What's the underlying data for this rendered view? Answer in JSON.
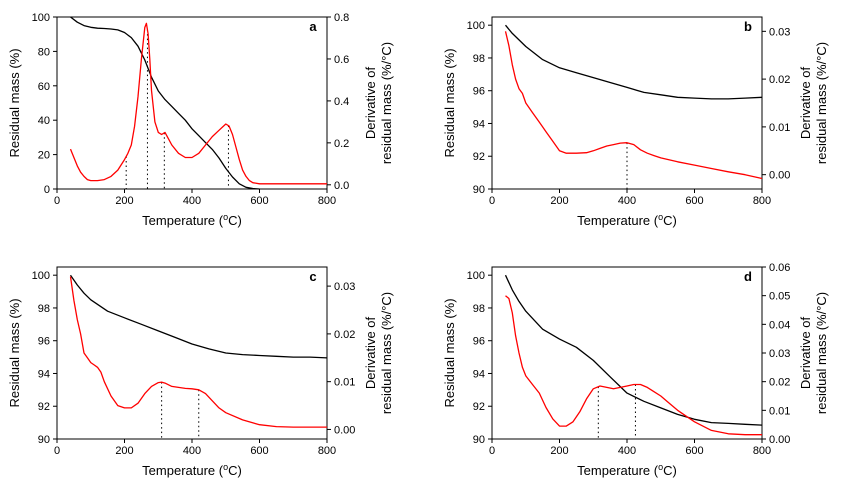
{
  "colors": {
    "mass": "#000000",
    "derivative": "#ff0000",
    "marker": "#000000"
  },
  "chart_data": [
    {
      "type": "line",
      "panel": "a",
      "xlabel": "Temperature (°C)",
      "ylabel": "Residual mass (%)",
      "y2label": [
        "Derivative of",
        "residual mass (%/°C)"
      ],
      "xlim": [
        0,
        800
      ],
      "xticks": [
        0,
        200,
        400,
        600,
        800
      ],
      "ylim": [
        0,
        100
      ],
      "yticks": [
        0,
        20,
        40,
        60,
        80,
        100
      ],
      "y2lim": [
        -0.02,
        0.8
      ],
      "y2ticks": [
        0.0,
        0.2,
        0.4,
        0.6,
        0.8
      ],
      "y2decimals": 1,
      "series": [
        {
          "name": "Residual mass",
          "axis": "left",
          "color": "#000000",
          "x": [
            40,
            60,
            80,
            100,
            120,
            140,
            160,
            180,
            200,
            220,
            240,
            260,
            280,
            300,
            320,
            340,
            360,
            380,
            400,
            420,
            440,
            460,
            480,
            500,
            520,
            540,
            560,
            580,
            600
          ],
          "y": [
            100,
            97,
            95,
            94,
            93.5,
            93.3,
            93,
            92.5,
            91,
            88,
            83,
            75,
            65,
            57,
            52,
            48,
            44,
            40,
            35,
            31,
            27,
            23,
            18,
            12,
            7,
            3,
            1,
            0.3,
            0
          ]
        },
        {
          "name": "Derivative of residual mass",
          "axis": "right",
          "color": "#ff0000",
          "x": [
            40,
            50,
            60,
            70,
            80,
            90,
            100,
            120,
            140,
            160,
            180,
            200,
            210,
            220,
            230,
            240,
            250,
            260,
            265,
            270,
            275,
            280,
            290,
            300,
            310,
            320,
            330,
            340,
            360,
            380,
            400,
            420,
            440,
            460,
            480,
            500,
            510,
            520,
            530,
            540,
            550,
            560,
            570,
            580,
            600,
            650,
            700,
            750,
            800
          ],
          "y": [
            0.17,
            0.13,
            0.09,
            0.06,
            0.04,
            0.025,
            0.02,
            0.02,
            0.025,
            0.04,
            0.07,
            0.12,
            0.15,
            0.19,
            0.28,
            0.42,
            0.6,
            0.75,
            0.77,
            0.72,
            0.6,
            0.45,
            0.3,
            0.25,
            0.24,
            0.25,
            0.22,
            0.19,
            0.15,
            0.13,
            0.13,
            0.15,
            0.19,
            0.23,
            0.26,
            0.29,
            0.28,
            0.24,
            0.18,
            0.12,
            0.07,
            0.04,
            0.02,
            0.01,
            0.005,
            0.005,
            0.005,
            0.005,
            0.005
          ]
        }
      ],
      "peak_markers": [
        205,
        268,
        318,
        508
      ]
    },
    {
      "type": "line",
      "panel": "b",
      "xlabel": "Temperature (°C)",
      "ylabel": "Residual mass (%)",
      "y2label": [
        "Derivative of",
        "residual mass (%/°C)"
      ],
      "xlim": [
        0,
        800
      ],
      "xticks": [
        0,
        200,
        400,
        600,
        800
      ],
      "ylim": [
        90,
        100.5
      ],
      "yticks": [
        90,
        92,
        94,
        96,
        98,
        100
      ],
      "y2lim": [
        -0.003,
        0.033
      ],
      "y2ticks": [
        0.0,
        0.01,
        0.02,
        0.03
      ],
      "y2decimals": 2,
      "series": [
        {
          "name": "Residual mass",
          "axis": "left",
          "color": "#000000",
          "x": [
            40,
            60,
            80,
            100,
            150,
            200,
            250,
            300,
            350,
            400,
            450,
            500,
            550,
            600,
            650,
            700,
            750,
            800
          ],
          "y": [
            100,
            99.5,
            99.1,
            98.7,
            97.9,
            97.4,
            97.1,
            96.8,
            96.5,
            96.2,
            95.9,
            95.75,
            95.6,
            95.55,
            95.5,
            95.5,
            95.55,
            95.6
          ]
        },
        {
          "name": "Derivative of residual mass",
          "axis": "right",
          "color": "#ff0000",
          "x": [
            40,
            50,
            60,
            70,
            80,
            90,
            100,
            120,
            140,
            160,
            180,
            200,
            220,
            250,
            280,
            300,
            320,
            340,
            360,
            380,
            400,
            420,
            440,
            460,
            480,
            500,
            550,
            600,
            650,
            700,
            750,
            800
          ],
          "y": [
            0.03,
            0.027,
            0.023,
            0.02,
            0.018,
            0.017,
            0.015,
            0.013,
            0.011,
            0.009,
            0.007,
            0.005,
            0.0045,
            0.0045,
            0.0046,
            0.005,
            0.0055,
            0.006,
            0.0063,
            0.0066,
            0.0067,
            0.0063,
            0.0052,
            0.0045,
            0.004,
            0.0035,
            0.0027,
            0.002,
            0.0013,
            0.0006,
            0.0,
            -0.0008
          ]
        }
      ],
      "peak_markers": [
        400
      ]
    },
    {
      "type": "line",
      "panel": "c",
      "xlabel": "Temperature (°C)",
      "ylabel": "Residual mass (%)",
      "y2label": [
        "Derivative of",
        "residual mass (%/°C)"
      ],
      "xlim": [
        0,
        800
      ],
      "xticks": [
        0,
        200,
        400,
        600,
        800
      ],
      "ylim": [
        90,
        100.5
      ],
      "yticks": [
        90,
        92,
        94,
        96,
        98,
        100
      ],
      "y2lim": [
        -0.002,
        0.034
      ],
      "y2ticks": [
        0.0,
        0.01,
        0.02,
        0.03
      ],
      "y2decimals": 2,
      "series": [
        {
          "name": "Residual mass",
          "axis": "left",
          "color": "#000000",
          "x": [
            40,
            60,
            80,
            100,
            150,
            200,
            250,
            300,
            350,
            400,
            450,
            500,
            550,
            600,
            650,
            700,
            750,
            800
          ],
          "y": [
            100,
            99.4,
            98.9,
            98.5,
            97.8,
            97.4,
            97.0,
            96.6,
            96.2,
            95.8,
            95.5,
            95.25,
            95.15,
            95.1,
            95.05,
            95.0,
            95.0,
            94.95
          ]
        },
        {
          "name": "Derivative of residual mass",
          "axis": "right",
          "color": "#ff0000",
          "x": [
            40,
            50,
            60,
            70,
            80,
            90,
            100,
            110,
            120,
            130,
            140,
            160,
            180,
            200,
            220,
            240,
            260,
            280,
            300,
            310,
            320,
            340,
            360,
            380,
            400,
            420,
            440,
            460,
            480,
            500,
            550,
            600,
            650,
            700,
            750,
            800
          ],
          "y": [
            0.032,
            0.027,
            0.023,
            0.02,
            0.016,
            0.015,
            0.014,
            0.0135,
            0.013,
            0.012,
            0.01,
            0.007,
            0.005,
            0.0045,
            0.0045,
            0.0055,
            0.0075,
            0.009,
            0.0098,
            0.0099,
            0.0097,
            0.009,
            0.0088,
            0.0086,
            0.0085,
            0.0083,
            0.0075,
            0.006,
            0.0045,
            0.0035,
            0.002,
            0.001,
            0.0006,
            0.0005,
            0.0005,
            0.0005
          ]
        }
      ],
      "peak_markers": [
        310,
        420
      ]
    },
    {
      "type": "line",
      "panel": "d",
      "xlabel": "Temperature (°C)",
      "ylabel": "Residual mass (%)",
      "y2label": [
        "Derivative of",
        "residual mass (%/°C)"
      ],
      "xlim": [
        0,
        800
      ],
      "xticks": [
        0,
        200,
        400,
        600,
        800
      ],
      "ylim": [
        90,
        100.5
      ],
      "yticks": [
        90,
        92,
        94,
        96,
        98,
        100
      ],
      "y2lim": [
        0.0,
        0.06
      ],
      "y2ticks": [
        0.0,
        0.01,
        0.02,
        0.03,
        0.04,
        0.05,
        0.06
      ],
      "y2decimals": 2,
      "series": [
        {
          "name": "Residual mass",
          "axis": "left",
          "color": "#000000",
          "x": [
            40,
            60,
            80,
            100,
            150,
            200,
            250,
            300,
            350,
            400,
            450,
            500,
            550,
            600,
            650,
            700,
            750,
            800
          ],
          "y": [
            100,
            99.1,
            98.4,
            97.8,
            96.7,
            96.1,
            95.6,
            94.8,
            93.8,
            92.8,
            92.3,
            91.9,
            91.5,
            91.2,
            91.0,
            90.95,
            90.9,
            90.85
          ]
        },
        {
          "name": "Derivative of residual mass",
          "axis": "right",
          "color": "#ff0000",
          "x": [
            40,
            50,
            60,
            70,
            80,
            90,
            100,
            120,
            140,
            160,
            180,
            200,
            220,
            240,
            260,
            280,
            300,
            320,
            340,
            360,
            380,
            400,
            420,
            440,
            460,
            480,
            500,
            520,
            550,
            600,
            650,
            700,
            750,
            800
          ],
          "y": [
            0.05,
            0.049,
            0.044,
            0.036,
            0.03,
            0.025,
            0.022,
            0.019,
            0.016,
            0.011,
            0.007,
            0.0045,
            0.0045,
            0.006,
            0.0095,
            0.014,
            0.0175,
            0.0185,
            0.018,
            0.0175,
            0.018,
            0.0185,
            0.019,
            0.019,
            0.018,
            0.0165,
            0.015,
            0.013,
            0.01,
            0.006,
            0.003,
            0.0018,
            0.0015,
            0.0015
          ]
        }
      ],
      "peak_markers": [
        315,
        425
      ]
    }
  ]
}
